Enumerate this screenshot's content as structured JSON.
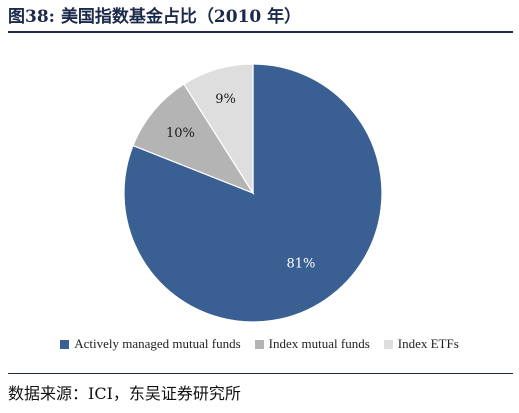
{
  "figure": {
    "number": "图38:",
    "title": "美国指数基金占比（2010 年）"
  },
  "chart_data": {
    "type": "pie",
    "categories": [
      "Actively managed mutual funds",
      "Index mutual funds",
      "Index ETFs"
    ],
    "values": [
      81,
      10,
      9
    ],
    "labels": [
      "81%",
      "10%",
      "9%"
    ],
    "colors": [
      "#3a5f93",
      "#b4b4b4",
      "#dedede"
    ],
    "label_colors": [
      "#ffffff",
      "#1a1a1a",
      "#1a1a1a"
    ],
    "start_angle_deg": 0,
    "direction": "clockwise",
    "legend_position": "bottom"
  },
  "source": "数据来源：ICI，东吴证券研究所"
}
